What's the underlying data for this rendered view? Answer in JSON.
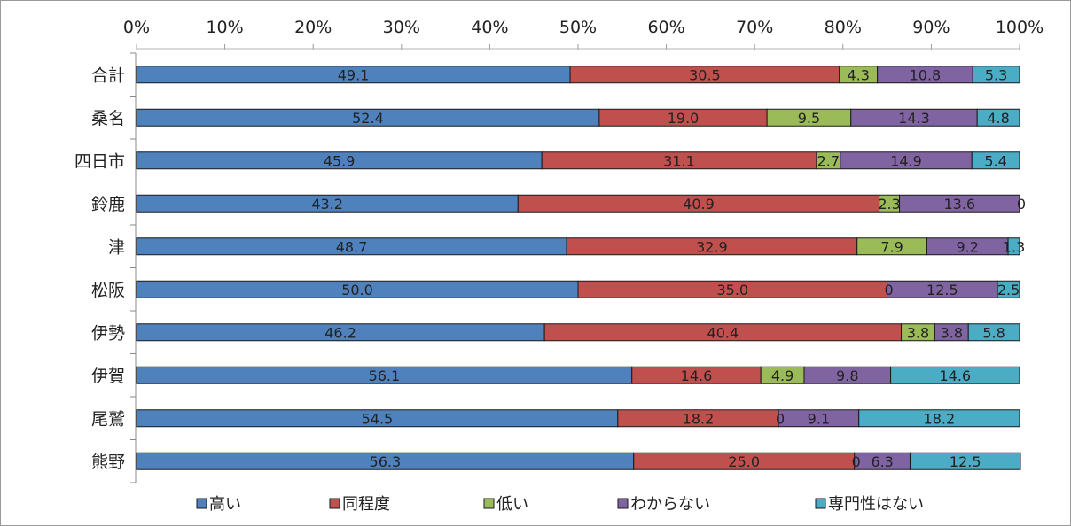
{
  "chart_data": {
    "type": "bar",
    "orientation": "horizontal",
    "stacked": "percent",
    "title": "",
    "xlim": [
      0,
      100
    ],
    "x_ticks": [
      "0%",
      "10%",
      "20%",
      "30%",
      "40%",
      "50%",
      "60%",
      "70%",
      "80%",
      "90%",
      "100%"
    ],
    "grid": false,
    "legend_position": "bottom",
    "categories": [
      "合計",
      "桑名",
      "四日市",
      "鈴鹿",
      "津",
      "松阪",
      "伊勢",
      "伊賀",
      "尾鷲",
      "熊野"
    ],
    "series": [
      {
        "name": "高い",
        "color": "#4f81bd",
        "values": [
          49.1,
          52.4,
          45.9,
          43.2,
          48.7,
          50.0,
          46.2,
          56.1,
          54.5,
          56.3
        ],
        "labels": [
          "49.1",
          "52.4",
          "45.9",
          "43.2",
          "48.7",
          "50.0",
          "46.2",
          "56.1",
          "54.5",
          "56.3"
        ]
      },
      {
        "name": "同程度",
        "color": "#c0504d",
        "values": [
          30.5,
          19.0,
          31.1,
          40.9,
          32.9,
          35.0,
          40.4,
          14.6,
          18.2,
          25.0
        ],
        "labels": [
          "30.5",
          "19.0",
          "31.1",
          "40.9",
          "32.9",
          "35.0",
          "40.4",
          "14.6",
          "18.2",
          "25.0"
        ]
      },
      {
        "name": "低い",
        "color": "#9bbb59",
        "values": [
          4.3,
          9.5,
          2.7,
          2.3,
          7.9,
          0,
          3.8,
          4.9,
          0,
          0
        ],
        "labels": [
          "4.3",
          "9.5",
          "2.7",
          "2.3",
          "7.9",
          "0",
          "3.8",
          "4.9",
          "0",
          "0"
        ]
      },
      {
        "name": "わからない",
        "color": "#8064a2",
        "values": [
          10.8,
          14.3,
          14.9,
          13.6,
          9.2,
          12.5,
          3.8,
          9.8,
          9.1,
          6.3
        ],
        "labels": [
          "10.8",
          "14.3",
          "14.9",
          "13.6",
          "9.2",
          "12.5",
          "3.8",
          "9.8",
          "9.1",
          "6.3"
        ]
      },
      {
        "name": "専門性はない",
        "color": "#4bacc6",
        "values": [
          5.3,
          4.8,
          5.4,
          0,
          1.3,
          2.5,
          5.8,
          14.6,
          18.2,
          12.5
        ],
        "labels": [
          "5.3",
          "4.8",
          "5.4",
          "0",
          "1.3",
          "2.5",
          "5.8",
          "14.6",
          "18.2",
          "12.5"
        ]
      }
    ]
  }
}
